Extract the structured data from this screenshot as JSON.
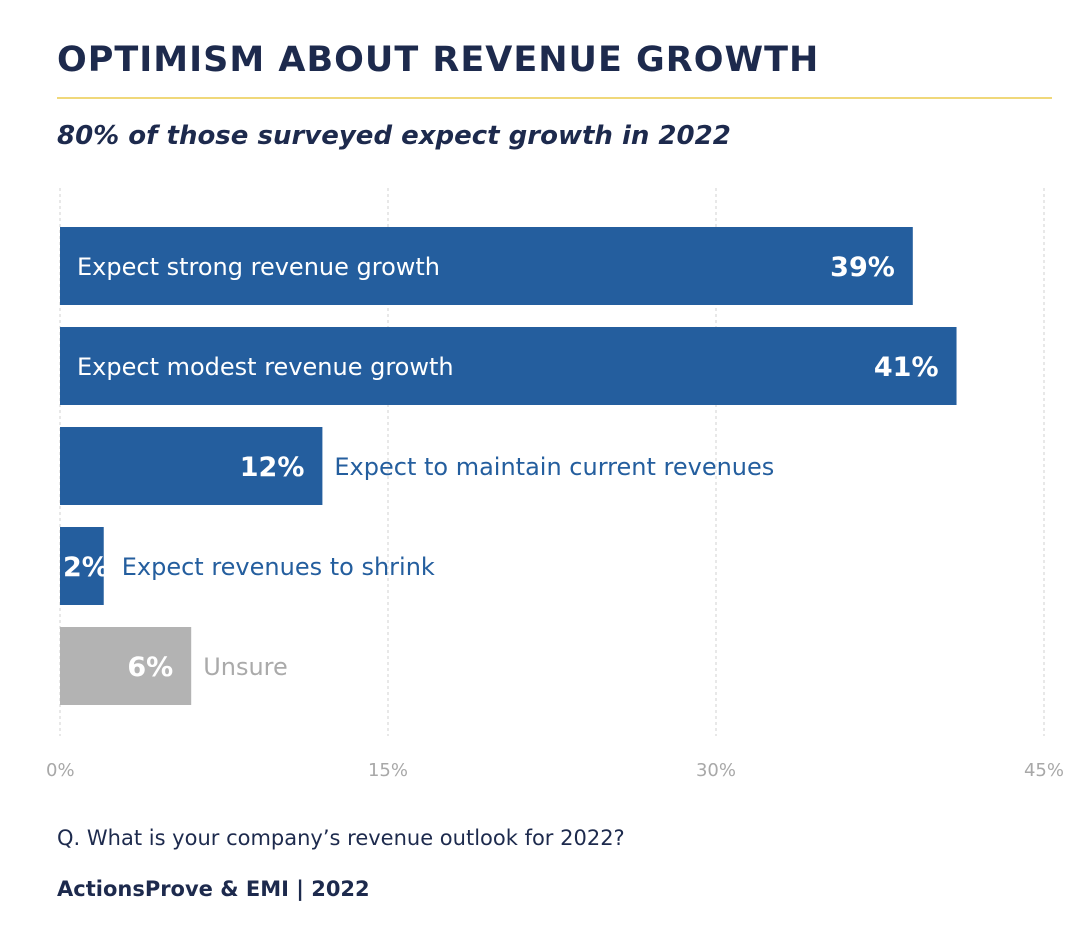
{
  "header": {
    "title": "OPTIMISM ABOUT REVENUE GROWTH",
    "subtitle": "80% of those surveyed expect growth in 2022"
  },
  "footer": {
    "question": "Q. What is your company’s revenue outlook for 2022?",
    "source": "ActionsProve & EMI  |  2022"
  },
  "colors": {
    "primary": "#245e9e",
    "neutral": "#b3b3b3",
    "title": "#1d2a4d",
    "rule": "#f0d87a",
    "grid": "#d0d0d0",
    "axis_text": "#a8a8a8"
  },
  "chart_data": {
    "type": "bar",
    "orientation": "horizontal",
    "title": "OPTIMISM ABOUT REVENUE GROWTH",
    "subtitle": "80% of those surveyed expect growth in 2022",
    "categories": [
      "Expect strong revenue growth",
      "Expect modest revenue growth",
      "Expect to maintain current revenues",
      "Expect revenues to shrink",
      "Unsure"
    ],
    "values": [
      39,
      41,
      12,
      2,
      6
    ],
    "value_labels": [
      "39%",
      "41%",
      "12%",
      "2%",
      "6%"
    ],
    "bar_colors": [
      "#245e9e",
      "#245e9e",
      "#245e9e",
      "#245e9e",
      "#b3b3b3"
    ],
    "xlim": [
      0,
      45
    ],
    "xticks": [
      0,
      15,
      30,
      45
    ],
    "xtick_labels": [
      "0%",
      "15%",
      "30%",
      "45%"
    ],
    "grid": "vertical dashed",
    "legend": "none"
  }
}
